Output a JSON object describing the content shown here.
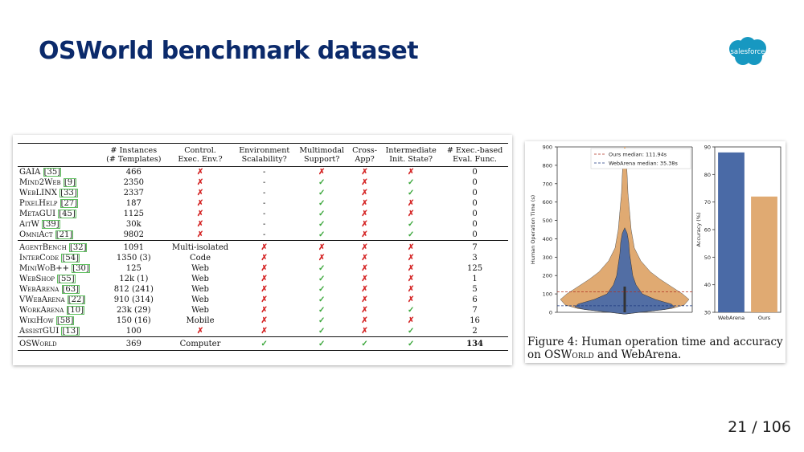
{
  "slide": {
    "title": "OSWorld benchmark dataset",
    "logo_text": "salesforce",
    "page_number": "21 / 106"
  },
  "table": {
    "headers": [
      "",
      "# Instances\n(# Templates)",
      "Control.\nExec. Env.?",
      "Environment\nScalability?",
      "Multimodal\nSupport?",
      "Cross-\nApp?",
      "Intermediate\nInit. State?",
      "# Exec.-based\nEval. Func."
    ],
    "groups": [
      [
        {
          "name": "GAIA",
          "ref": "[35]",
          "instances": "466",
          "control": "cross",
          "scal": "-",
          "mm": "cross",
          "cross": "cross",
          "inter": "cross",
          "eval": "0"
        },
        {
          "name": "Mind2Web",
          "ref": "[9]",
          "instances": "2350",
          "control": "cross",
          "scal": "-",
          "mm": "check",
          "cross": "cross",
          "inter": "check",
          "eval": "0"
        },
        {
          "name": "WebLINX",
          "ref": "[33]",
          "instances": "2337",
          "control": "cross",
          "scal": "-",
          "mm": "check",
          "cross": "cross",
          "inter": "check",
          "eval": "0"
        },
        {
          "name": "PixelHelp",
          "ref": "[27]",
          "instances": "187",
          "control": "cross",
          "scal": "-",
          "mm": "check",
          "cross": "cross",
          "inter": "cross",
          "eval": "0"
        },
        {
          "name": "MetaGUI",
          "ref": "[45]",
          "instances": "1125",
          "control": "cross",
          "scal": "-",
          "mm": "check",
          "cross": "cross",
          "inter": "cross",
          "eval": "0"
        },
        {
          "name": "AitW",
          "ref": "[39]",
          "instances": "30k",
          "control": "cross",
          "scal": "-",
          "mm": "check",
          "cross": "cross",
          "inter": "check",
          "eval": "0"
        },
        {
          "name": "OmniAct",
          "ref": "[21]",
          "instances": "9802",
          "control": "cross",
          "scal": "-",
          "mm": "check",
          "cross": "cross",
          "inter": "check",
          "eval": "0"
        }
      ],
      [
        {
          "name": "AgentBench",
          "ref": "[32]",
          "instances": "1091",
          "control": "Multi-isolated",
          "scal": "cross",
          "mm": "cross",
          "cross": "cross",
          "inter": "cross",
          "eval": "7"
        },
        {
          "name": "InterCode",
          "ref": "[54]",
          "instances": "1350 (3)",
          "control": "Code",
          "scal": "cross",
          "mm": "cross",
          "cross": "cross",
          "inter": "cross",
          "eval": "3"
        },
        {
          "name": "MiniWoB++",
          "ref": "[30]",
          "instances": "125",
          "control": "Web",
          "scal": "cross",
          "mm": "check",
          "cross": "cross",
          "inter": "cross",
          "eval": "125"
        },
        {
          "name": "WebShop",
          "ref": "[55]",
          "instances": "12k (1)",
          "control": "Web",
          "scal": "cross",
          "mm": "check",
          "cross": "cross",
          "inter": "cross",
          "eval": "1"
        },
        {
          "name": "WebArena",
          "ref": "[63]",
          "instances": "812 (241)",
          "control": "Web",
          "scal": "cross",
          "mm": "check",
          "cross": "cross",
          "inter": "cross",
          "eval": "5"
        },
        {
          "name": "VWebArena",
          "ref": "[22]",
          "instances": "910 (314)",
          "control": "Web",
          "scal": "cross",
          "mm": "check",
          "cross": "cross",
          "inter": "cross",
          "eval": "6"
        },
        {
          "name": "WorkArena",
          "ref": "[10]",
          "instances": "23k (29)",
          "control": "Web",
          "scal": "cross",
          "mm": "check",
          "cross": "cross",
          "inter": "check",
          "eval": "7"
        },
        {
          "name": "WikiHow",
          "ref": "[58]",
          "instances": "150 (16)",
          "control": "Mobile",
          "scal": "cross",
          "mm": "check",
          "cross": "cross",
          "inter": "cross",
          "eval": "16"
        },
        {
          "name": "AssistGUI",
          "ref": "[13]",
          "instances": "100",
          "control": "cross",
          "scal": "cross",
          "mm": "check",
          "cross": "cross",
          "inter": "check",
          "eval": "2"
        }
      ],
      [
        {
          "name": "OSWorld",
          "ref": "",
          "instances": "369",
          "control": "Computer",
          "scal": "check",
          "mm": "check",
          "cross": "check",
          "inter": "check",
          "eval": "134"
        }
      ]
    ],
    "symbols": {
      "cross": "✗",
      "check": "✓"
    }
  },
  "chart_data": [
    {
      "type": "violin",
      "ylabel": "Human Operation Time (s)",
      "ylim": [
        0,
        900
      ],
      "yticks": [
        "0",
        "100",
        "200",
        "300",
        "400",
        "500",
        "600",
        "700",
        "800",
        "900"
      ],
      "series": [
        {
          "name": "Ours median: 111.94s",
          "color": "#e0aa72",
          "median": 111.94,
          "max": 900
        },
        {
          "name": "WebArena median: 35.38s",
          "color": "#4a6aa6",
          "median": 35.38,
          "max": 460
        }
      ],
      "legend": "top-right"
    },
    {
      "type": "bar",
      "ylabel": "Accuracy (%)",
      "categories": [
        "WebArena",
        "Ours"
      ],
      "values": [
        88,
        72
      ],
      "colors": [
        "#4a6aa6",
        "#e0aa72"
      ],
      "ylim": [
        30,
        90
      ],
      "yticks": [
        "30",
        "40",
        "50",
        "60",
        "70",
        "80",
        "90"
      ]
    }
  ],
  "caption": {
    "label": "Figure 4:",
    "text_1": "Human operation time and accuracy on",
    "text_2": "OSWorld",
    "text_3": "and WebArena."
  }
}
